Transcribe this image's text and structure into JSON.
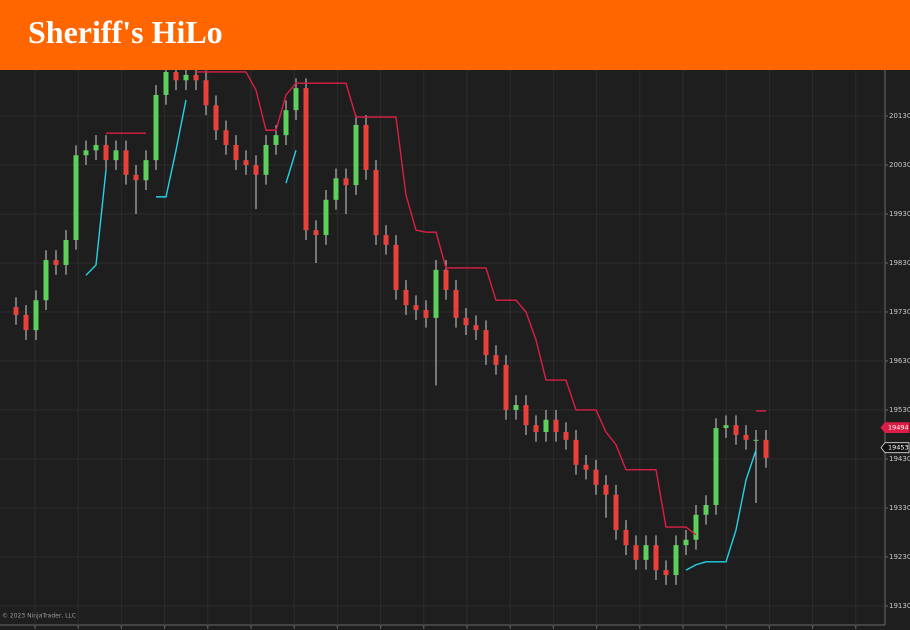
{
  "chart_data": {
    "type": "candlestick",
    "title": "Sheriff's HiLo",
    "footer": "© 2023 NinjaTrader, LLC",
    "ylim": [
      19091,
      20224
    ],
    "yticks": [
      19130,
      19230,
      19330,
      19430,
      19530,
      19630,
      19730,
      19830,
      19930,
      20030,
      20130
    ],
    "grid": true,
    "up_color": "#5ccf5c",
    "down_color": "#e8413c",
    "open": [
      19740,
      19724,
      19693,
      19754,
      19836,
      19826,
      19877,
      20050,
      20060,
      20071,
      20040,
      20060,
      20010,
      19999,
      20040,
      20173,
      20220,
      20203,
      20214,
      20203,
      20152,
      20101,
      20071,
      20040,
      20030,
      20010,
      20071,
      20091,
      20142,
      20187,
      19897,
      19887,
      19959,
      20003,
      19989,
      20112,
      20020,
      19887,
      19867,
      19775,
      19744,
      19734,
      19718,
      19816,
      19775,
      19718,
      19703,
      19693,
      19642,
      19622,
      19530,
      19540,
      19499,
      19485,
      19510,
      19485,
      19469,
      19418,
      19408,
      19377,
      19357,
      19285,
      19254,
      19224,
      19254,
      19203,
      19193,
      19254,
      19265,
      19316,
      19336,
      19493,
      19499,
      19479,
      19469,
      19469
    ],
    "high": [
      19760,
      19744,
      19774,
      19856,
      19856,
      19897,
      20070,
      20080,
      20091,
      20091,
      20080,
      20080,
      20030,
      20060,
      20193,
      20224,
      20224,
      20224,
      20224,
      20223,
      20172,
      20121,
      20091,
      20060,
      20050,
      20091,
      20111,
      20162,
      20207,
      20207,
      19917,
      19979,
      20023,
      20023,
      20132,
      20132,
      20040,
      19907,
      19887,
      19795,
      19764,
      19754,
      19836,
      19836,
      19795,
      19738,
      19723,
      19713,
      19662,
      19642,
      19560,
      19560,
      19519,
      19530,
      19530,
      19505,
      19489,
      19438,
      19428,
      19397,
      19377,
      19305,
      19274,
      19274,
      19274,
      19223,
      19274,
      19285,
      19336,
      19356,
      19513,
      19519,
      19519,
      19499,
      19489,
      19489
    ],
    "low": [
      19704,
      19673,
      19673,
      19734,
      19806,
      19806,
      19857,
      20030,
      20040,
      20020,
      20020,
      19990,
      19930,
      19979,
      20020,
      20153,
      20183,
      20183,
      20183,
      20132,
      20081,
      20051,
      20020,
      20010,
      19940,
      19990,
      20051,
      20071,
      20122,
      19877,
      19830,
      19867,
      19939,
      19930,
      19969,
      20000,
      19867,
      19847,
      19755,
      19724,
      19714,
      19698,
      19580,
      19755,
      19698,
      19683,
      19673,
      19622,
      19602,
      19510,
      19510,
      19479,
      19465,
      19465,
      19465,
      19449,
      19398,
      19388,
      19357,
      19310,
      19265,
      19234,
      19204,
      19204,
      19183,
      19173,
      19173,
      19234,
      19245,
      19296,
      19316,
      19473,
      19459,
      19449,
      19340,
      19412
    ],
    "close": [
      19724,
      19693,
      19754,
      19836,
      19826,
      19877,
      20050,
      20060,
      20071,
      20040,
      20060,
      20010,
      19999,
      20040,
      20173,
      20220,
      20203,
      20214,
      20203,
      20152,
      20101,
      20071,
      20040,
      20030,
      20010,
      20071,
      20091,
      20142,
      20187,
      19897,
      19887,
      19959,
      20003,
      19989,
      20112,
      20020,
      19887,
      19867,
      19775,
      19744,
      19734,
      19718,
      19816,
      19775,
      19718,
      19703,
      19693,
      19642,
      19622,
      19530,
      19540,
      19499,
      19485,
      19510,
      19485,
      19469,
      19418,
      19408,
      19377,
      19357,
      19285,
      19254,
      19224,
      19254,
      19203,
      19193,
      19254,
      19265,
      19316,
      19336,
      19493,
      19499,
      19479,
      19469,
      19469,
      19432
    ],
    "hilo_high": {
      "color": "#dc1e46",
      "values": [
        null,
        null,
        null,
        null,
        null,
        null,
        null,
        null,
        null,
        20095,
        20095,
        20095,
        20095,
        20095,
        null,
        null,
        null,
        null,
        20220,
        20220,
        20220,
        20220,
        20220,
        20220,
        20183,
        20101,
        20101,
        20173,
        20197,
        20197,
        20197,
        20197,
        20197,
        20197,
        20128,
        20128,
        20128,
        20128,
        20128,
        19969,
        19897,
        19893,
        19893,
        19820,
        19820,
        19820,
        19820,
        19820,
        19754,
        19754,
        19754,
        19730,
        19673,
        19591,
        19591,
        19591,
        19530,
        19530,
        19530,
        19485,
        19459,
        19408,
        19408,
        19408,
        19408,
        19291,
        19291,
        19291,
        19275,
        null,
        null,
        null,
        null,
        null,
        19528,
        19528
      ]
    },
    "hilo_low": {
      "color": "#22d3e6",
      "values": [
        null,
        null,
        null,
        null,
        null,
        null,
        null,
        19805,
        19826,
        20020,
        null,
        null,
        null,
        null,
        19965,
        19965,
        20060,
        20163,
        null,
        null,
        null,
        null,
        null,
        null,
        null,
        null,
        null,
        19993,
        20060,
        null,
        null,
        null,
        null,
        null,
        null,
        null,
        null,
        null,
        null,
        null,
        null,
        null,
        null,
        null,
        null,
        null,
        null,
        null,
        null,
        null,
        null,
        null,
        null,
        null,
        null,
        null,
        null,
        null,
        null,
        null,
        null,
        null,
        null,
        null,
        null,
        null,
        null,
        19203,
        19214,
        19220,
        19220,
        19220,
        19285,
        19387,
        19448,
        null
      ]
    },
    "price_markers": [
      {
        "value": 19494,
        "color": "#dc1e46"
      },
      {
        "value": 19453,
        "color": "#f0f0f0"
      }
    ]
  }
}
